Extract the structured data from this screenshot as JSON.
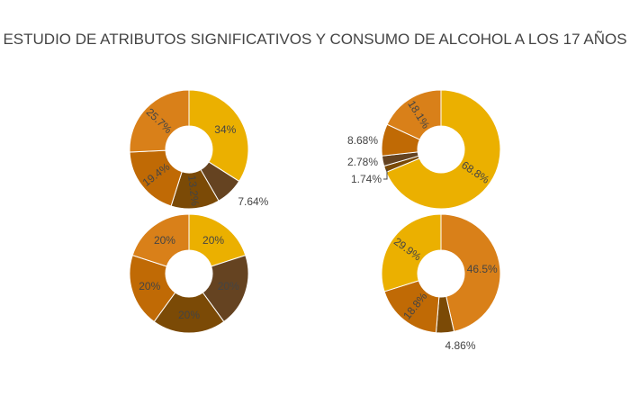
{
  "title": "ESTUDIO DE ATRIBUTOS SIGNIFICATIVOS  Y CONSUMO DE ALCOHOL A LOS 17 AÑOS",
  "chart_data": [
    {
      "type": "pie",
      "hole": true,
      "slices": [
        {
          "value": 34,
          "label": "34%",
          "color": "#EBB000",
          "text": "inside"
        },
        {
          "value": 7.64,
          "label": "7.64%",
          "color": "#654321",
          "text": "outside"
        },
        {
          "value": 13.2,
          "label": "13.2%",
          "color": "#7B4A06",
          "text": "inside"
        },
        {
          "value": 19.4,
          "label": "19.4%",
          "color": "#C06A05",
          "text": "inside"
        },
        {
          "value": 25.7,
          "label": "25.7%",
          "color": "#D98019",
          "text": "inside"
        }
      ]
    },
    {
      "type": "pie",
      "hole": true,
      "slices": [
        {
          "value": 68.8,
          "label": "68.8%",
          "color": "#EBB000",
          "text": "inside"
        },
        {
          "value": 1.74,
          "label": "1.74%",
          "color": "#7B4A06",
          "text": "outside-leader"
        },
        {
          "value": 2.78,
          "label": "2.78%",
          "color": "#654321",
          "text": "outside"
        },
        {
          "value": 8.68,
          "label": "8.68%",
          "color": "#C06A05",
          "text": "outside"
        },
        {
          "value": 18.1,
          "label": "18.1%",
          "color": "#D98019",
          "text": "inside"
        }
      ]
    },
    {
      "type": "pie",
      "hole": true,
      "slices": [
        {
          "value": 20,
          "label": "20%",
          "color": "#EBB000",
          "text": "inside"
        },
        {
          "value": 20,
          "label": "20%",
          "color": "#654321",
          "text": "inside"
        },
        {
          "value": 20,
          "label": "20%",
          "color": "#7B4A06",
          "text": "inside"
        },
        {
          "value": 20,
          "label": "20%",
          "color": "#C06A05",
          "text": "inside"
        },
        {
          "value": 20,
          "label": "20%",
          "color": "#D98019",
          "text": "inside"
        }
      ]
    },
    {
      "type": "pie",
      "hole": true,
      "slices": [
        {
          "value": 46.5,
          "label": "46.5%",
          "color": "#D98019",
          "text": "inside"
        },
        {
          "value": 4.86,
          "label": "4.86%",
          "color": "#7B4A06",
          "text": "outside"
        },
        {
          "value": 18.8,
          "label": "18.8%",
          "color": "#C06A05",
          "text": "inside"
        },
        {
          "value": 29.9,
          "label": "29.9%",
          "color": "#EBB000",
          "text": "inside"
        }
      ]
    }
  ]
}
